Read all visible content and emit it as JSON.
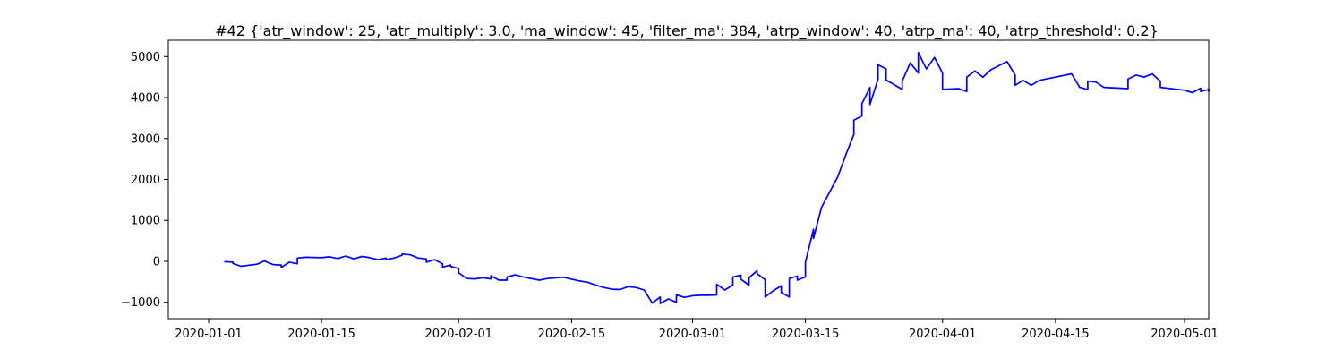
{
  "chart_data": {
    "type": "line",
    "title": "#42 {'atr_window': 25, 'atr_multiply': 3.0, 'ma_window': 45, 'filter_ma': 384, 'atrp_window': 40, 'atrp_ma': 40, 'atrp_threshold': 0.2}",
    "xlabel": "",
    "ylabel": "",
    "x_axis": {
      "type": "date",
      "range": [
        "2019-12-27",
        "2020-05-04"
      ],
      "ticks": [
        "2020-01-01",
        "2020-01-15",
        "2020-02-01",
        "2020-02-15",
        "2020-03-01",
        "2020-03-15",
        "2020-04-01",
        "2020-04-15",
        "2020-05-01"
      ]
    },
    "y_axis": {
      "range": [
        -1400,
        5400
      ],
      "ticks": [
        -1000,
        0,
        1000,
        2000,
        3000,
        4000,
        5000
      ]
    },
    "grid": false,
    "series": [
      {
        "color": "#0000ff",
        "points": [
          [
            "2020-01-03",
            0
          ],
          [
            "2020-01-03",
            -10
          ],
          [
            "2020-01-04",
            -20
          ],
          [
            "2020-01-04",
            -50
          ],
          [
            "2020-01-05",
            -120
          ],
          [
            "2020-01-07",
            -70
          ],
          [
            "2020-01-08",
            20
          ],
          [
            "2020-01-08",
            0
          ],
          [
            "2020-01-09",
            -80
          ],
          [
            "2020-01-10",
            -90
          ],
          [
            "2020-01-10",
            -150
          ],
          [
            "2020-01-11",
            -20
          ],
          [
            "2020-01-12",
            -60
          ],
          [
            "2020-01-12",
            80
          ],
          [
            "2020-01-13",
            100
          ],
          [
            "2020-01-15",
            90
          ],
          [
            "2020-01-16",
            110
          ],
          [
            "2020-01-17",
            70
          ],
          [
            "2020-01-18",
            130
          ],
          [
            "2020-01-19",
            60
          ],
          [
            "2020-01-20",
            120
          ],
          [
            "2020-01-21",
            90
          ],
          [
            "2020-01-22",
            40
          ],
          [
            "2020-01-23",
            80
          ],
          [
            "2020-01-23",
            40
          ],
          [
            "2020-01-24",
            80
          ],
          [
            "2020-01-25",
            150
          ],
          [
            "2020-01-25",
            180
          ],
          [
            "2020-01-26",
            160
          ],
          [
            "2020-01-27",
            80
          ],
          [
            "2020-01-28",
            60
          ],
          [
            "2020-01-28",
            -20
          ],
          [
            "2020-01-29",
            40
          ],
          [
            "2020-01-30",
            -60
          ],
          [
            "2020-01-30",
            -140
          ],
          [
            "2020-01-31",
            -90
          ],
          [
            "2020-01-31",
            -120
          ],
          [
            "2020-02-01",
            -180
          ],
          [
            "2020-02-01",
            -280
          ],
          [
            "2020-02-02",
            -420
          ],
          [
            "2020-02-03",
            -430
          ],
          [
            "2020-02-04",
            -400
          ],
          [
            "2020-02-05",
            -430
          ],
          [
            "2020-02-05",
            -350
          ],
          [
            "2020-02-06",
            -460
          ],
          [
            "2020-02-07",
            -460
          ],
          [
            "2020-02-07",
            -380
          ],
          [
            "2020-02-08",
            -330
          ],
          [
            "2020-02-09",
            -380
          ],
          [
            "2020-02-11",
            -460
          ],
          [
            "2020-02-12",
            -420
          ],
          [
            "2020-02-14",
            -390
          ],
          [
            "2020-02-16",
            -480
          ],
          [
            "2020-02-17",
            -510
          ],
          [
            "2020-02-18",
            -580
          ],
          [
            "2020-02-19",
            -640
          ],
          [
            "2020-02-20",
            -680
          ],
          [
            "2020-02-21",
            -690
          ],
          [
            "2020-02-22",
            -620
          ],
          [
            "2020-02-23",
            -640
          ],
          [
            "2020-02-24",
            -700
          ],
          [
            "2020-02-25",
            -1020
          ],
          [
            "2020-02-26",
            -870
          ],
          [
            "2020-02-26",
            -1030
          ],
          [
            "2020-02-27",
            -920
          ],
          [
            "2020-02-28",
            -1000
          ],
          [
            "2020-02-28",
            -820
          ],
          [
            "2020-02-29",
            -880
          ],
          [
            "2020-03-01",
            -840
          ],
          [
            "2020-03-02",
            -830
          ],
          [
            "2020-03-03",
            -830
          ],
          [
            "2020-03-04",
            -820
          ],
          [
            "2020-03-04",
            -560
          ],
          [
            "2020-03-05",
            -700
          ],
          [
            "2020-03-06",
            -580
          ],
          [
            "2020-03-06",
            -380
          ],
          [
            "2020-03-07",
            -340
          ],
          [
            "2020-03-07",
            -440
          ],
          [
            "2020-03-08",
            -580
          ],
          [
            "2020-03-08",
            -400
          ],
          [
            "2020-03-09",
            -230
          ],
          [
            "2020-03-09",
            -300
          ],
          [
            "2020-03-10",
            -450
          ],
          [
            "2020-03-10",
            -870
          ],
          [
            "2020-03-11",
            -720
          ],
          [
            "2020-03-12",
            -600
          ],
          [
            "2020-03-12",
            -760
          ],
          [
            "2020-03-13",
            -870
          ],
          [
            "2020-03-13",
            -420
          ],
          [
            "2020-03-14",
            -360
          ],
          [
            "2020-03-14",
            -460
          ],
          [
            "2020-03-15",
            -380
          ],
          [
            "2020-03-15",
            -20
          ],
          [
            "2020-03-16",
            780
          ],
          [
            "2020-03-16",
            560
          ],
          [
            "2020-03-17",
            1320
          ],
          [
            "2020-03-19",
            2060
          ],
          [
            "2020-03-20",
            2600
          ],
          [
            "2020-03-21",
            3100
          ],
          [
            "2020-03-21",
            3450
          ],
          [
            "2020-03-22",
            3550
          ],
          [
            "2020-03-22",
            3850
          ],
          [
            "2020-03-23",
            4250
          ],
          [
            "2020-03-23",
            3830
          ],
          [
            "2020-03-24",
            4450
          ],
          [
            "2020-03-24",
            4800
          ],
          [
            "2020-03-25",
            4700
          ],
          [
            "2020-03-25",
            4430
          ],
          [
            "2020-03-27",
            4200
          ],
          [
            "2020-03-27",
            4400
          ],
          [
            "2020-03-28",
            4850
          ],
          [
            "2020-03-29",
            4600
          ],
          [
            "2020-03-29",
            5100
          ],
          [
            "2020-03-30",
            4700
          ],
          [
            "2020-03-31",
            4980
          ],
          [
            "2020-04-01",
            4600
          ],
          [
            "2020-04-01",
            4200
          ],
          [
            "2020-04-03",
            4220
          ],
          [
            "2020-04-04",
            4150
          ],
          [
            "2020-04-04",
            4500
          ],
          [
            "2020-04-05",
            4650
          ],
          [
            "2020-04-06",
            4500
          ],
          [
            "2020-04-07",
            4680
          ],
          [
            "2020-04-09",
            4880
          ],
          [
            "2020-04-10",
            4550
          ],
          [
            "2020-04-10",
            4300
          ],
          [
            "2020-04-11",
            4420
          ],
          [
            "2020-04-12",
            4300
          ],
          [
            "2020-04-13",
            4420
          ],
          [
            "2020-04-17",
            4580
          ],
          [
            "2020-04-18",
            4250
          ],
          [
            "2020-04-19",
            4200
          ],
          [
            "2020-04-19",
            4400
          ],
          [
            "2020-04-20",
            4380
          ],
          [
            "2020-04-21",
            4250
          ],
          [
            "2020-04-24",
            4220
          ],
          [
            "2020-04-24",
            4450
          ],
          [
            "2020-04-25",
            4550
          ],
          [
            "2020-04-26",
            4500
          ],
          [
            "2020-04-27",
            4580
          ],
          [
            "2020-04-28",
            4400
          ],
          [
            "2020-04-28",
            4250
          ],
          [
            "2020-05-01",
            4180
          ],
          [
            "2020-05-02",
            4120
          ],
          [
            "2020-05-03",
            4230
          ],
          [
            "2020-05-03",
            4150
          ],
          [
            "2020-05-04",
            4200
          ],
          [
            "2020-05-04",
            4150
          ],
          [
            "2020-05-04",
            4220
          ],
          [
            "2020-05-04",
            4170
          ]
        ]
      }
    ]
  }
}
